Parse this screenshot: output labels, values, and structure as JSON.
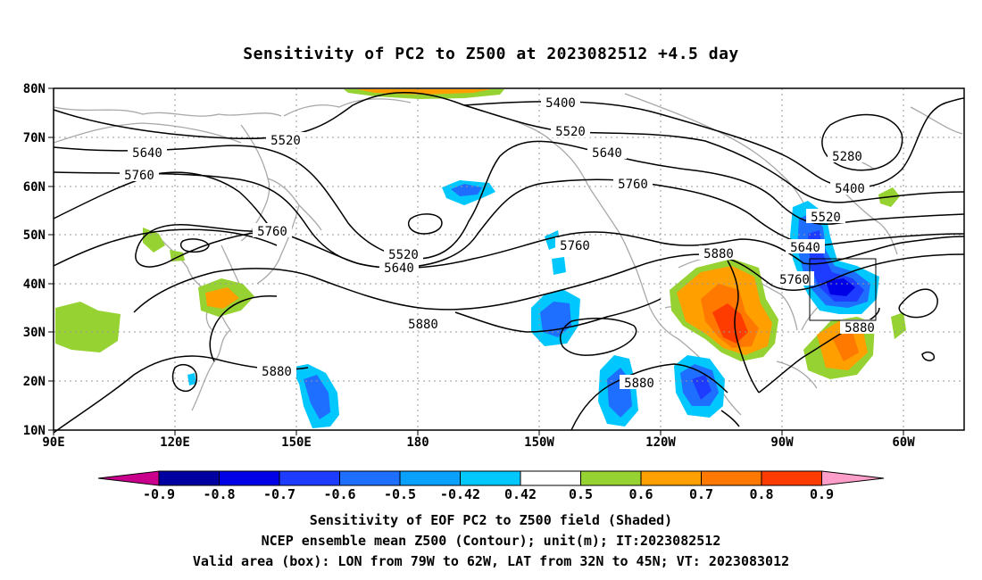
{
  "title": "Sensitivity of PC2 to Z500 at 2023082512 +4.5 day",
  "axes": {
    "lat_labels": [
      "80N",
      "70N",
      "60N",
      "50N",
      "40N",
      "30N",
      "20N",
      "10N"
    ],
    "lon_labels": [
      "90E",
      "120E",
      "150E",
      "180",
      "150W",
      "120W",
      "90W",
      "60W"
    ]
  },
  "contour_labels": [
    "5280",
    "5400",
    "5400",
    "5520",
    "5520",
    "5520",
    "5520",
    "5640",
    "5640",
    "5640",
    "5640",
    "5760",
    "5760",
    "5760",
    "5760",
    "5760",
    "5880",
    "5880",
    "5880",
    "5880",
    "5880"
  ],
  "colorbar": {
    "tick_labels": [
      "-0.9",
      "-0.8",
      "-0.7",
      "-0.6",
      "-0.5",
      "-0.42",
      "0.42",
      "0.5",
      "0.6",
      "0.7",
      "0.8",
      "0.9"
    ],
    "colors": [
      "#0000a0",
      "#0000e6",
      "#1e3cff",
      "#1e6eff",
      "#0aa0ff",
      "#00c8ff",
      "#ffffff",
      "#96d232",
      "#ffa000",
      "#ff7800",
      "#ff3c00",
      "#ff0000"
    ],
    "end_low_color": "#c8008c",
    "end_high_color": "#ff9ec8"
  },
  "valid_box": {
    "lon": [
      "79W",
      "62W"
    ],
    "lat": [
      "32N",
      "45N"
    ]
  },
  "captions": [
    "Sensitivity of EOF PC2 to Z500 field (Shaded)",
    "NCEP ensemble mean Z500 (Contour); unit(m); IT:2023082512",
    "Valid area (box): LON from 79W to 62W, LAT from 32N to 45N; VT: 2023083012"
  ]
}
